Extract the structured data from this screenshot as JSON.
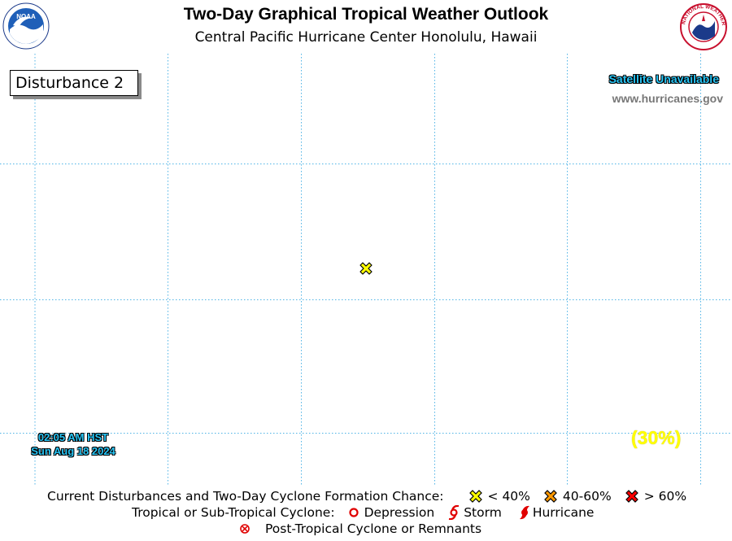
{
  "header": {
    "title": "Two-Day Graphical Tropical Weather Outlook",
    "subtitle": "Central Pacific Hurricane Center  Honolulu, Hawaii",
    "noaa_logo_text": "NOAA",
    "nws_logo_text": "NATIONAL WEATHER SERVICE"
  },
  "map": {
    "disturbance_label": "Disturbance 2",
    "satellite_status": "Satellite Unavailable",
    "website": "www.hurricanes.gov",
    "timestamp_time": "02:05 AM HST",
    "timestamp_date": "Sun Aug 18 2024",
    "formation_chance": "(30%)",
    "disturbance_marker": {
      "category": "< 40%",
      "color": "#ffff00"
    },
    "grid_color": "#4fb3e6"
  },
  "legend": {
    "row1_label": "Current Disturbances and Two-Day Cyclone Formation Chance:",
    "low": {
      "label": "< 40%",
      "color": "#ffff00"
    },
    "medium": {
      "label": "40-60%",
      "color": "#ff9900"
    },
    "high": {
      "label": "> 60%",
      "color": "#ff0000"
    },
    "row2_label": "Tropical or Sub-Tropical Cyclone:",
    "depression": "Depression",
    "storm": "Storm",
    "hurricane": "Hurricane",
    "row3_label": "Post-Tropical Cyclone or Remnants"
  }
}
